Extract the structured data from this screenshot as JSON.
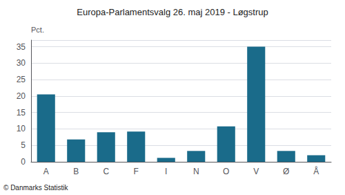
{
  "chart_data": {
    "type": "bar",
    "title": "Europa-Parlamentsvalg 26. maj 2019 - Løgstrup",
    "categories": [
      "A",
      "B",
      "C",
      "F",
      "I",
      "N",
      "O",
      "V",
      "Ø",
      "Å"
    ],
    "values": [
      20.5,
      6.8,
      9.0,
      9.2,
      1.2,
      3.3,
      10.8,
      35.0,
      3.3,
      2.0
    ],
    "color": "#1a6b8a",
    "ylabel": "Pct.",
    "footer": "© Danmarks Statistik",
    "ylim": [
      0,
      37
    ],
    "yticks": [
      0,
      5,
      10,
      15,
      20,
      25,
      30,
      35
    ],
    "grid": true
  }
}
